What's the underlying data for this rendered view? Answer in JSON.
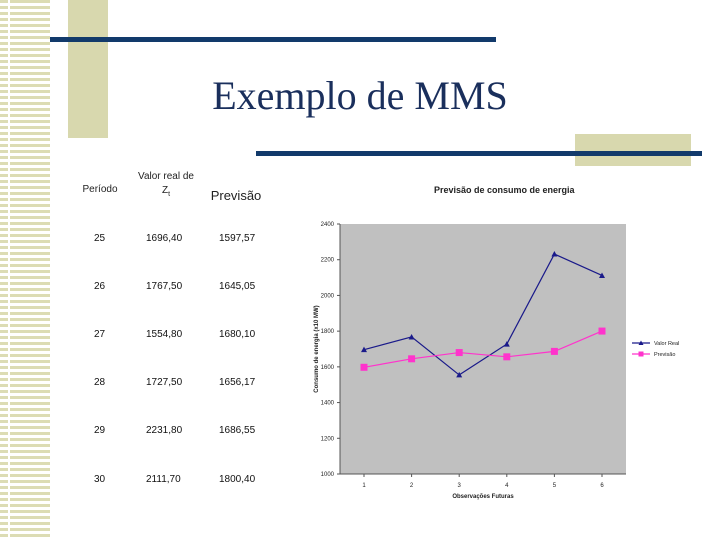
{
  "slide": {
    "title": "Exemplo de MMS"
  },
  "table": {
    "headers": {
      "period": "Período",
      "real_line1": "Valor real de",
      "real_line2": "Z",
      "real_sub": "t",
      "forecast": "Previsão"
    },
    "rows": [
      {
        "period": "25",
        "real": "1696,40",
        "forecast": "1597,57"
      },
      {
        "period": "26",
        "real": "1767,50",
        "forecast": "1645,05"
      },
      {
        "period": "27",
        "real": "1554,80",
        "forecast": "1680,10"
      },
      {
        "period": "28",
        "real": "1727,50",
        "forecast": "1656,17"
      },
      {
        "period": "29",
        "real": "2231,80",
        "forecast": "1686,55"
      },
      {
        "period": "30",
        "real": "2111,70",
        "forecast": "1800,40"
      }
    ]
  },
  "chart_data": {
    "type": "line",
    "title": "Previsão de consumo de energia",
    "xlabel": "Observações Futuras",
    "ylabel": "Consumo de energia (x10 MW)",
    "x": [
      1,
      2,
      3,
      4,
      5,
      6
    ],
    "ylim": [
      1000,
      2400
    ],
    "yticks": [
      1000,
      1200,
      1400,
      1600,
      1800,
      2000,
      2200,
      2400
    ],
    "grid": false,
    "legend_position": "right",
    "series": [
      {
        "name": "Valor Real",
        "color": "#1a1a8a",
        "marker": "triangle",
        "values": [
          1696.4,
          1767.5,
          1554.8,
          1727.5,
          2231.8,
          2111.7
        ]
      },
      {
        "name": "Previsão",
        "color": "#ff33cc",
        "marker": "square",
        "values": [
          1597.57,
          1645.05,
          1680.1,
          1656.17,
          1686.55,
          1800.4
        ]
      }
    ],
    "plot_bg": "#c0c0c0"
  }
}
